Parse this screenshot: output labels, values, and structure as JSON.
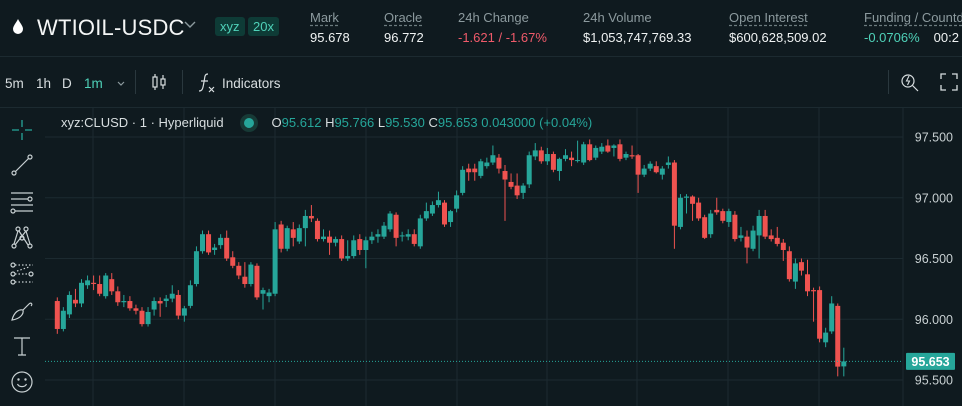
{
  "header": {
    "symbol": "WTIOIL-USDC",
    "badges": [
      "xyz",
      "20x"
    ],
    "stats": [
      {
        "label": "Mark",
        "value": "95.678",
        "underline": true,
        "color": "#f0f3f3"
      },
      {
        "label": "Oracle",
        "value": "96.772",
        "underline": true,
        "color": "#f0f3f3"
      },
      {
        "label": "24h Change",
        "value": "-1.621 / -1.67%",
        "underline": false,
        "color": "#ef5a6a"
      },
      {
        "label": "24h Volume",
        "value": "$1,053,747,769.33",
        "underline": false,
        "color": "#f0f3f3"
      },
      {
        "label": "Open Interest",
        "value": "$600,628,509.02",
        "underline": true,
        "color": "#f0f3f3"
      },
      {
        "label": "Funding / Countdown",
        "value": "-0.0706%",
        "underline": true,
        "color": "#4fd1b8",
        "extra": "00:2"
      }
    ]
  },
  "toolbar": {
    "timeframes": [
      "5m",
      "1h",
      "D"
    ],
    "active_timeframe": "1m",
    "indicators_label": "Indicators",
    "icons": [
      "candle-style-icon",
      "indicators-icon",
      "quick-search-icon",
      "fullscreen-icon"
    ]
  },
  "left_tools": [
    "crosshair-icon",
    "trend-line-icon",
    "horizontal-lines-icon",
    "pattern-icon",
    "fib-icon",
    "brush-icon",
    "text-icon",
    "emoji-icon"
  ],
  "legend": {
    "title": "xyz:CLUSD · 1 · Hyperliquid",
    "o": "95.612",
    "h": "95.766",
    "l": "95.530",
    "c": "95.653",
    "change": "0.043000 (+0.04%)"
  },
  "chart_data": {
    "type": "candlestick",
    "ylim": [
      95.45,
      97.6
    ],
    "yticks": [
      "97.500",
      "97.000",
      "96.500",
      "96.000",
      "95.500"
    ],
    "last_price": "95.653",
    "up_color": "#26a69a",
    "down_color": "#ef5350",
    "grid": true,
    "candles": [
      [
        96.15,
        96.18,
        95.88,
        95.92
      ],
      [
        95.92,
        96.1,
        95.9,
        96.07
      ],
      [
        96.04,
        96.23,
        96.01,
        96.2
      ],
      [
        96.16,
        96.25,
        96.1,
        96.13
      ],
      [
        96.13,
        96.33,
        96.1,
        96.3
      ],
      [
        96.28,
        96.36,
        96.25,
        96.32
      ],
      [
        96.3,
        96.36,
        96.24,
        96.29
      ],
      [
        96.29,
        96.36,
        96.19,
        96.21
      ],
      [
        96.19,
        96.38,
        96.17,
        96.36
      ],
      [
        96.33,
        96.38,
        96.2,
        96.23
      ],
      [
        96.23,
        96.27,
        96.11,
        96.14
      ],
      [
        96.14,
        96.2,
        96.1,
        96.15
      ],
      [
        96.15,
        96.19,
        96.07,
        96.09
      ],
      [
        96.09,
        96.12,
        96.04,
        96.07
      ],
      [
        96.07,
        96.1,
        95.94,
        95.96
      ],
      [
        95.96,
        96.1,
        95.94,
        96.06
      ],
      [
        96.08,
        96.18,
        96.03,
        96.15
      ],
      [
        96.15,
        96.18,
        96.02,
        96.13
      ],
      [
        96.15,
        96.2,
        96.1,
        96.17
      ],
      [
        96.17,
        96.28,
        96.14,
        96.21
      ],
      [
        96.2,
        96.24,
        96.0,
        96.03
      ],
      [
        96.03,
        96.11,
        95.98,
        96.09
      ],
      [
        96.11,
        96.32,
        96.09,
        96.28
      ],
      [
        96.29,
        96.6,
        96.27,
        96.56
      ],
      [
        96.56,
        96.73,
        96.54,
        96.7
      ],
      [
        96.7,
        96.73,
        96.53,
        96.55
      ],
      [
        96.57,
        96.62,
        96.53,
        96.59
      ],
      [
        96.61,
        96.7,
        96.58,
        96.67
      ],
      [
        96.67,
        96.73,
        96.48,
        96.5
      ],
      [
        96.51,
        96.56,
        96.42,
        96.44
      ],
      [
        96.44,
        96.47,
        96.33,
        96.36
      ],
      [
        96.35,
        96.47,
        96.26,
        96.29
      ],
      [
        96.29,
        96.47,
        96.27,
        96.45
      ],
      [
        96.44,
        96.46,
        96.16,
        96.18
      ],
      [
        96.21,
        96.26,
        96.08,
        96.24
      ],
      [
        96.19,
        96.25,
        96.14,
        96.22
      ],
      [
        96.21,
        96.8,
        96.19,
        96.74
      ],
      [
        96.78,
        96.81,
        96.55,
        96.58
      ],
      [
        96.58,
        96.77,
        96.56,
        96.75
      ],
      [
        96.74,
        96.8,
        96.6,
        96.67
      ],
      [
        96.64,
        96.78,
        96.62,
        96.75
      ],
      [
        96.75,
        96.9,
        96.6,
        96.85
      ],
      [
        96.85,
        96.94,
        96.8,
        96.83
      ],
      [
        96.81,
        96.83,
        96.64,
        96.66
      ],
      [
        96.66,
        96.74,
        96.64,
        96.68
      ],
      [
        96.68,
        96.73,
        96.53,
        96.63
      ],
      [
        96.63,
        96.68,
        96.6,
        96.66
      ],
      [
        96.66,
        96.69,
        96.48,
        96.5
      ],
      [
        96.5,
        96.65,
        96.48,
        96.52
      ],
      [
        96.52,
        96.69,
        96.5,
        96.65
      ],
      [
        96.66,
        96.7,
        96.53,
        96.57
      ],
      [
        96.57,
        96.68,
        96.42,
        96.65
      ],
      [
        96.65,
        96.72,
        96.62,
        96.68
      ],
      [
        96.68,
        96.74,
        96.63,
        96.7
      ],
      [
        96.68,
        96.8,
        96.66,
        96.77
      ],
      [
        96.74,
        96.89,
        96.72,
        96.87
      ],
      [
        96.86,
        96.88,
        96.6,
        96.67
      ],
      [
        96.69,
        96.72,
        96.64,
        96.69
      ],
      [
        96.68,
        96.74,
        96.65,
        96.7
      ],
      [
        96.7,
        96.74,
        96.6,
        96.62
      ],
      [
        96.6,
        96.86,
        96.58,
        96.83
      ],
      [
        96.83,
        96.96,
        96.81,
        96.89
      ],
      [
        96.87,
        96.97,
        96.85,
        96.94
      ],
      [
        96.94,
        97.05,
        96.92,
        96.98
      ],
      [
        96.96,
        96.98,
        96.76,
        96.78
      ],
      [
        96.8,
        96.9,
        96.76,
        96.89
      ],
      [
        96.91,
        97.06,
        96.88,
        97.02
      ],
      [
        97.04,
        97.26,
        97.02,
        97.23
      ],
      [
        97.24,
        97.28,
        97.14,
        97.21
      ],
      [
        97.24,
        97.28,
        97.14,
        97.21
      ],
      [
        97.18,
        97.32,
        97.16,
        97.3
      ],
      [
        97.26,
        97.33,
        97.24,
        97.29
      ],
      [
        97.29,
        97.43,
        97.27,
        97.35
      ],
      [
        97.33,
        97.36,
        97.2,
        97.24
      ],
      [
        97.22,
        97.27,
        96.81,
        97.15
      ],
      [
        97.13,
        97.2,
        97.07,
        97.09
      ],
      [
        97.1,
        97.2,
        96.99,
        97.02
      ],
      [
        97.04,
        97.12,
        96.99,
        97.1
      ],
      [
        97.11,
        97.38,
        97.08,
        97.35
      ],
      [
        97.34,
        97.45,
        97.31,
        97.39
      ],
      [
        97.39,
        97.42,
        97.28,
        97.3
      ],
      [
        97.3,
        97.41,
        97.27,
        97.36
      ],
      [
        97.36,
        97.38,
        97.21,
        97.23
      ],
      [
        97.22,
        97.33,
        97.14,
        97.32
      ],
      [
        97.32,
        97.4,
        97.3,
        97.35
      ],
      [
        97.33,
        97.38,
        97.26,
        97.31
      ],
      [
        97.31,
        97.47,
        97.29,
        97.31
      ],
      [
        97.29,
        97.46,
        97.27,
        97.44
      ],
      [
        97.44,
        97.48,
        97.3,
        97.31
      ],
      [
        97.33,
        97.43,
        97.31,
        97.41
      ],
      [
        97.38,
        97.45,
        97.36,
        97.42
      ],
      [
        97.43,
        97.48,
        97.37,
        97.38
      ],
      [
        97.41,
        97.44,
        97.34,
        97.43
      ],
      [
        97.44,
        97.48,
        97.3,
        97.32
      ],
      [
        97.33,
        97.38,
        97.31,
        97.36
      ],
      [
        97.35,
        97.43,
        97.32,
        97.34
      ],
      [
        97.35,
        97.36,
        97.04,
        97.19
      ],
      [
        97.19,
        97.27,
        97.17,
        97.24
      ],
      [
        97.24,
        97.3,
        97.22,
        97.28
      ],
      [
        97.26,
        97.3,
        97.2,
        97.21
      ],
      [
        97.19,
        97.26,
        97.15,
        97.24
      ],
      [
        97.27,
        97.34,
        97.24,
        97.29
      ],
      [
        97.29,
        97.31,
        96.58,
        96.77
      ],
      [
        96.76,
        97.03,
        96.74,
        97.0
      ],
      [
        97.0,
        97.03,
        96.87,
        97.01
      ],
      [
        97.01,
        97.02,
        96.81,
        96.95
      ],
      [
        96.96,
        97.0,
        96.81,
        96.83
      ],
      [
        96.84,
        96.86,
        96.66,
        96.67
      ],
      [
        96.7,
        96.9,
        96.67,
        96.87
      ],
      [
        96.9,
        97.0,
        96.86,
        96.88
      ],
      [
        96.89,
        96.91,
        96.79,
        96.81
      ],
      [
        96.8,
        96.91,
        96.76,
        96.89
      ],
      [
        96.86,
        96.89,
        96.64,
        96.66
      ],
      [
        96.67,
        96.76,
        96.64,
        96.69
      ],
      [
        96.68,
        96.73,
        96.46,
        96.59
      ],
      [
        96.58,
        96.77,
        96.56,
        96.73
      ],
      [
        96.69,
        96.9,
        96.5,
        96.85
      ],
      [
        96.85,
        96.9,
        96.66,
        96.68
      ],
      [
        96.69,
        96.74,
        96.64,
        96.66
      ],
      [
        96.67,
        96.76,
        96.6,
        96.62
      ],
      [
        96.63,
        96.66,
        96.48,
        96.57
      ],
      [
        96.56,
        96.6,
        96.31,
        96.33
      ],
      [
        96.31,
        96.5,
        96.25,
        96.46
      ],
      [
        96.47,
        96.5,
        96.36,
        96.4
      ],
      [
        96.37,
        96.49,
        96.19,
        96.23
      ],
      [
        96.24,
        96.26,
        95.98,
        96.23
      ],
      [
        96.24,
        96.27,
        95.81,
        95.84
      ],
      [
        95.81,
        95.93,
        95.77,
        95.89
      ],
      [
        95.9,
        96.19,
        95.88,
        96.13
      ],
      [
        96.11,
        96.13,
        95.53,
        95.61
      ],
      [
        95.612,
        95.766,
        95.53,
        95.653
      ]
    ]
  }
}
